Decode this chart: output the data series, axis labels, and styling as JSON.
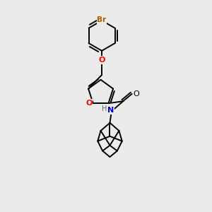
{
  "background_color": "#ebebeb",
  "bond_color": "#000000",
  "heteroatom_colors": {
    "O": "#ff0000",
    "N": "#0000cd",
    "Br": "#b35900",
    "H": "#666666"
  },
  "bond_lw": 1.4,
  "font_size": 7.5
}
